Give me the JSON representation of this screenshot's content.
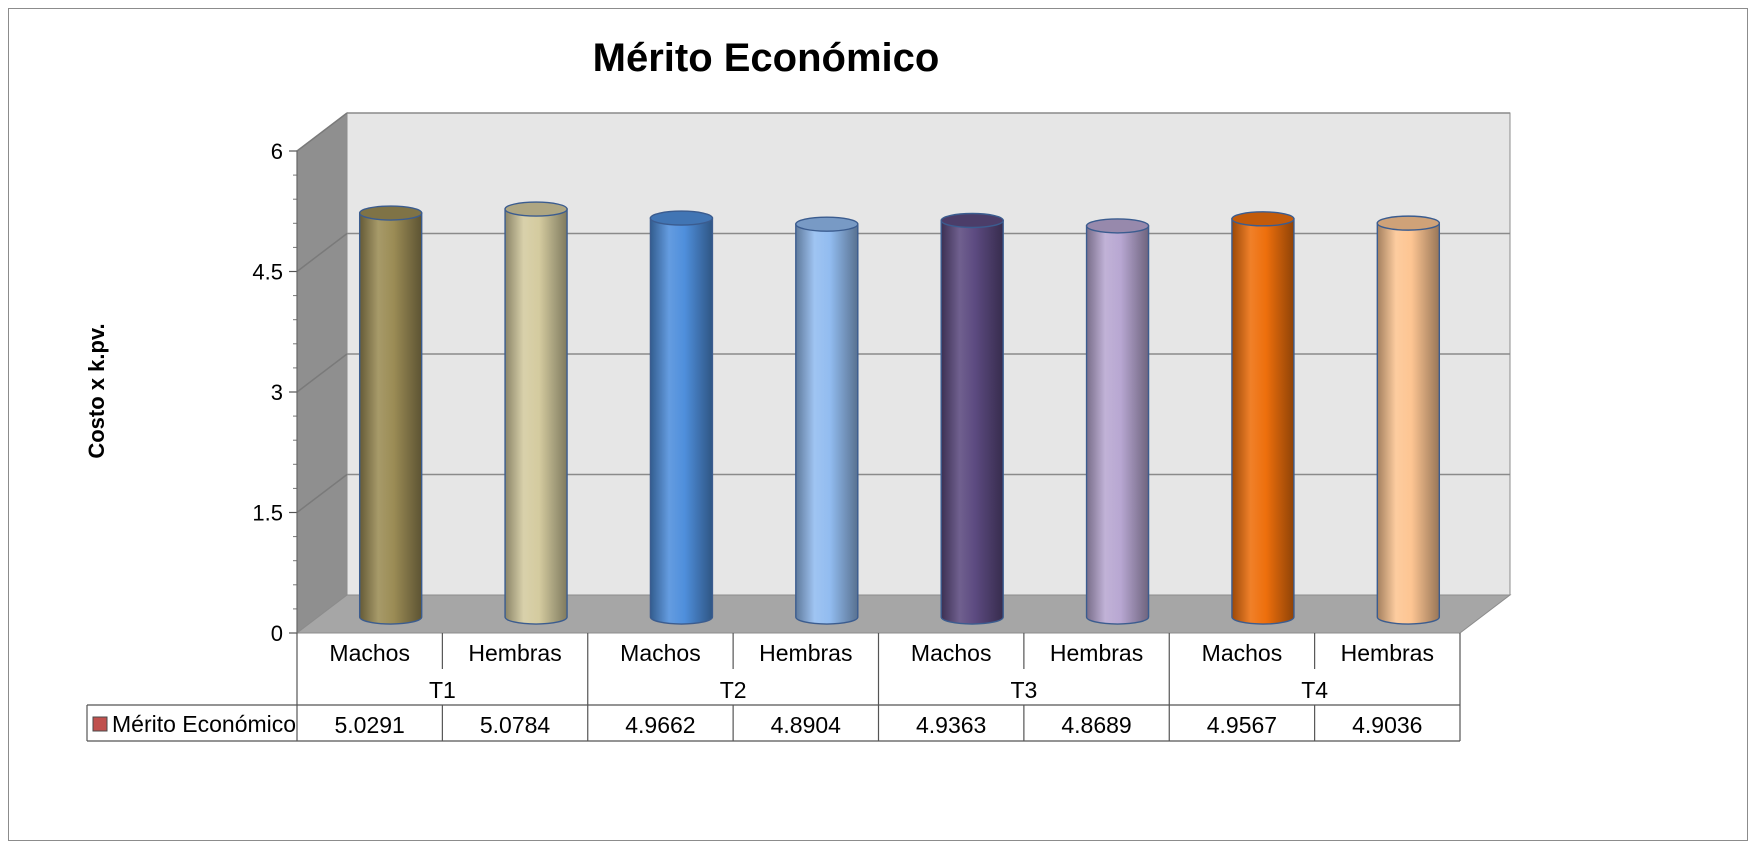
{
  "chart_data": {
    "type": "bar",
    "style": "3d-cylinder",
    "title": "Mérito Económico",
    "ylabel": "Costo x k.pv.",
    "xlabel": "",
    "ylim": [
      0,
      6
    ],
    "yticks": [
      "0",
      "1.5",
      "3",
      "4.5",
      "6"
    ],
    "grid": true,
    "groups": [
      "T1",
      "T2",
      "T3",
      "T4"
    ],
    "categories": [
      "Machos",
      "Hembras",
      "Machos",
      "Hembras",
      "Machos",
      "Hembras",
      "Machos",
      "Hembras"
    ],
    "series": [
      {
        "name": "Mérito Económico",
        "values": [
          5.0291,
          5.0784,
          4.9662,
          4.8904,
          4.9363,
          4.8689,
          4.9567,
          4.9036
        ],
        "value_labels": [
          "5.0291",
          "5.0784",
          "4.9662",
          "4.8904",
          "4.9363",
          "4.8689",
          "4.9567",
          "4.9036"
        ]
      }
    ],
    "bar_colors": [
      "#9b8c55",
      "#d4cb9f",
      "#4f8fdc",
      "#92bcf0",
      "#5c4a80",
      "#b8a7d2",
      "#ee6f0c",
      "#fdc592"
    ],
    "legend_color": "#c0504d",
    "data_table": true
  }
}
